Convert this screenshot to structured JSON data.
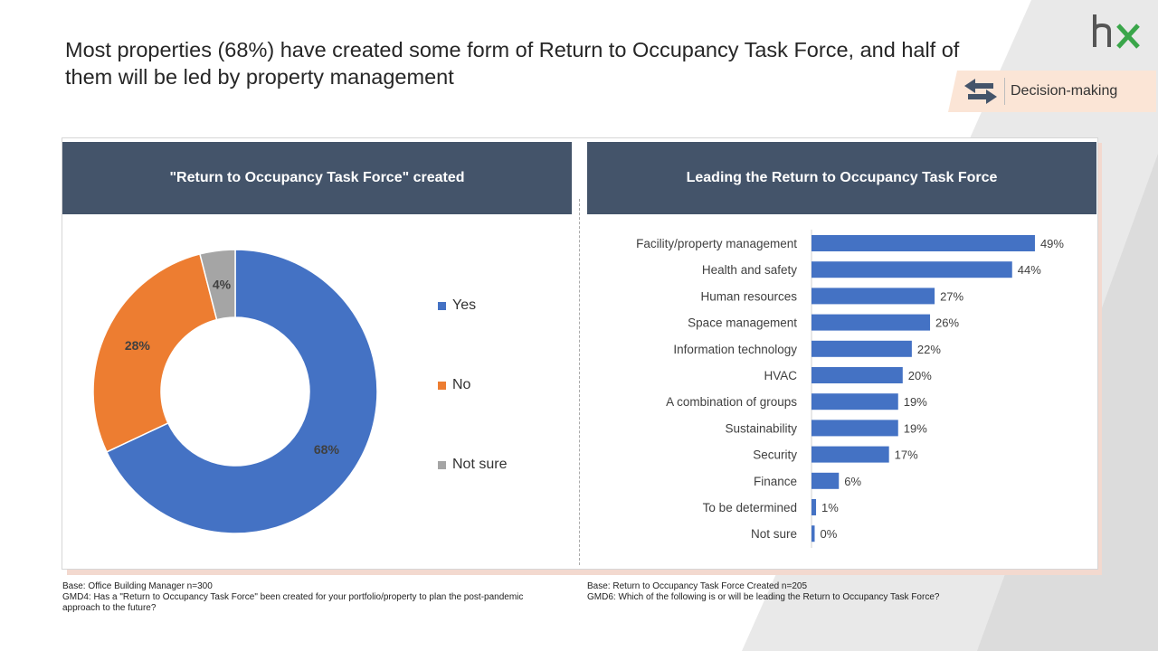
{
  "title": "Most properties (68%) have created some form of Return to Occupancy Task Force, and half of them will be led by property management",
  "logo": {
    "text": "hx",
    "icon": "hx-logo"
  },
  "tag": {
    "label": "Decision-making",
    "icon": "swap-arrows-icon"
  },
  "colors": {
    "blue": "#4472c4",
    "orange": "#ed7d31",
    "gray": "#a5a5a5",
    "header": "#44546a"
  },
  "chart_data": [
    {
      "type": "pie",
      "subtype": "donut",
      "title": "\"Return to Occupancy Task Force\" created",
      "categories": [
        "Yes",
        "No",
        "Not sure"
      ],
      "values": [
        68,
        28,
        4
      ],
      "labels": [
        "68%",
        "28%",
        "4%"
      ],
      "colors": [
        "#4472c4",
        "#ed7d31",
        "#a5a5a5"
      ],
      "legend": "right"
    },
    {
      "type": "bar",
      "orientation": "horizontal",
      "title": "Leading the Return to Occupancy Task Force",
      "categories": [
        "Facility/property management",
        "Health and safety",
        "Human resources",
        "Space management",
        "Information technology",
        "HVAC",
        "A combination of groups",
        "Sustainability",
        "Security",
        "Finance",
        "To be determined",
        "Not sure"
      ],
      "values": [
        49,
        44,
        27,
        26,
        22,
        20,
        19,
        19,
        17,
        6,
        1,
        0
      ],
      "labels": [
        "49%",
        "44%",
        "27%",
        "26%",
        "22%",
        "20%",
        "19%",
        "19%",
        "17%",
        "6%",
        "1%",
        "0%"
      ],
      "color": "#4472c4",
      "xlim": [
        0,
        50
      ]
    }
  ],
  "footnotes": {
    "left": [
      "Base: Office Building Manager n=300",
      "GMD4: Has a \"Return to Occupancy Task Force\" been created for your portfolio/property to plan the post-pandemic approach to the future?"
    ],
    "right": [
      "Base: Return to Occupancy Task Force Created n=205",
      "GMD6: Which of the following is or will be leading the Return to Occupancy Task Force?"
    ]
  }
}
